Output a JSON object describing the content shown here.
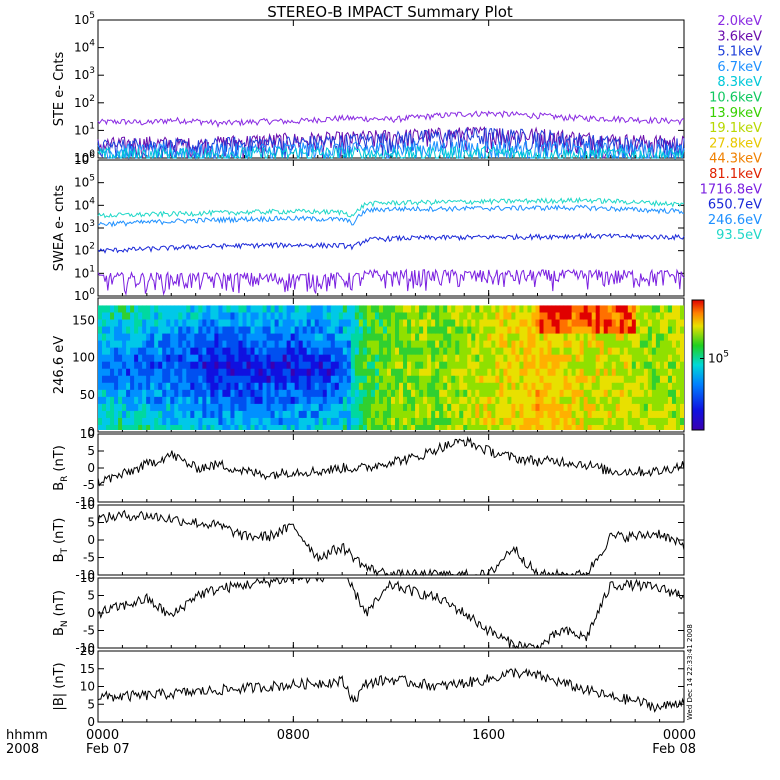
{
  "title": "STEREO-B IMPACT Summary Plot",
  "stamp": "Wed Dec 14 22:33:41 2008",
  "xaxis": {
    "corner_labels": [
      "hhmm",
      "2008"
    ],
    "ticks": [
      {
        "hour": 0,
        "label": "0000",
        "date": "Feb 07"
      },
      {
        "hour": 8,
        "label": "0800",
        "date": ""
      },
      {
        "hour": 16,
        "label": "1600",
        "date": ""
      },
      {
        "hour": 24,
        "label": "0000",
        "date": "Feb 08"
      }
    ],
    "range_hours": [
      0,
      24
    ]
  },
  "colors": {
    "2.0keV": "#8a2be2",
    "3.6keV": "#6a0dad",
    "5.1keV": "#1f3fd9",
    "6.7keV": "#1e90ff",
    "8.3keV": "#00c8d8",
    "10.6keV": "#10c860",
    "13.9keV": "#38d000",
    "19.1keV": "#b8d800",
    "27.8keV": "#e8c800",
    "44.3keV": "#f08000",
    "81.1keV": "#e02000",
    "1716.8eV": "#7a1fe0",
    "650.7eV": "#1a28d8",
    "246.6eV": "#1e90ff",
    "93.5eV": "#20d8c8"
  },
  "chart_data": [
    {
      "type": "line",
      "panel": "ste",
      "ylabel": "STE e- Cnts",
      "yscale": "log",
      "ylim": [
        1,
        100000
      ],
      "yticks": [
        {
          "v": 1,
          "m": "10",
          "e": "0"
        },
        {
          "v": 10,
          "m": "10",
          "e": "1"
        },
        {
          "v": 100,
          "m": "10",
          "e": "2"
        },
        {
          "v": 1000,
          "m": "10",
          "e": "3"
        },
        {
          "v": 10000,
          "m": "10",
          "e": "4"
        },
        {
          "v": 100000,
          "m": "10",
          "e": "5"
        }
      ],
      "series": [
        {
          "name": "2.0keV",
          "color": "#8a2be2",
          "x": [
            0,
            1,
            2,
            3,
            4,
            5,
            6,
            7,
            8,
            9,
            10,
            11,
            12,
            13,
            14,
            15,
            16,
            17,
            18,
            19,
            20,
            21,
            22,
            23,
            24
          ],
          "values": [
            20,
            21,
            19,
            24,
            22,
            18,
            20,
            22,
            21,
            25,
            28,
            27,
            25,
            30,
            35,
            40,
            42,
            38,
            35,
            30,
            28,
            27,
            25,
            23,
            22
          ]
        },
        {
          "name": "3.6keV",
          "color": "#6a0dad",
          "x": [
            0,
            2,
            4,
            6,
            8,
            10,
            12,
            14,
            16,
            18,
            20,
            22,
            24
          ],
          "values": [
            3,
            3.5,
            3,
            4,
            4.5,
            5,
            6,
            7,
            8,
            7,
            5,
            4,
            3.5
          ]
        },
        {
          "name": "5.1keV",
          "color": "#1f3fd9",
          "x": [
            0,
            2,
            4,
            6,
            8,
            10,
            12,
            14,
            16,
            18,
            20,
            22,
            24
          ],
          "values": [
            2.5,
            3,
            2.5,
            3.5,
            3.5,
            4,
            5,
            6,
            7,
            6,
            4,
            3,
            3
          ]
        },
        {
          "name": "6.7keV",
          "color": "#1e90ff",
          "x": [
            0,
            4,
            8,
            12,
            16,
            20,
            24
          ],
          "values": [
            1.8,
            1.8,
            2,
            2.2,
            2.5,
            2,
            1.8
          ]
        },
        {
          "name": "8.3keV",
          "color": "#00c8d8",
          "x": [
            0,
            4,
            8,
            12,
            16,
            20,
            24
          ],
          "values": [
            1.3,
            1.3,
            1.4,
            1.4,
            1.5,
            1.3,
            1.3
          ]
        },
        {
          "name": "10.6keV",
          "values": [],
          "color": "#10c860"
        },
        {
          "name": "13.9keV",
          "values": [],
          "color": "#38d000"
        },
        {
          "name": "19.1keV",
          "values": [],
          "color": "#b8d800"
        },
        {
          "name": "27.8keV",
          "values": [],
          "color": "#e8c800"
        },
        {
          "name": "44.3keV",
          "values": [],
          "color": "#f08000"
        },
        {
          "name": "81.1keV",
          "values": [],
          "color": "#e02000"
        }
      ]
    },
    {
      "type": "line",
      "panel": "swea",
      "ylabel": "SWEA e- cnts",
      "yscale": "log",
      "ylim": [
        1,
        1000000
      ],
      "yticks": [
        {
          "v": 1,
          "m": "10",
          "e": "0"
        },
        {
          "v": 10,
          "m": "10",
          "e": "1"
        },
        {
          "v": 100,
          "m": "10",
          "e": "2"
        },
        {
          "v": 1000,
          "m": "10",
          "e": "3"
        },
        {
          "v": 10000,
          "m": "10",
          "e": "4"
        },
        {
          "v": 100000,
          "m": "10",
          "e": "5"
        },
        {
          "v": 1000000,
          "m": "10",
          "e": "6"
        }
      ],
      "series": [
        {
          "name": "1716.8eV",
          "color": "#7a1fe0",
          "x": [
            0,
            4,
            8,
            10.5,
            11,
            12,
            16,
            20,
            24
          ],
          "values": [
            6,
            6,
            6,
            6,
            8,
            8,
            8,
            8,
            8
          ]
        },
        {
          "name": "650.7eV",
          "color": "#1a28d8",
          "x": [
            0,
            2,
            4,
            6,
            8,
            10,
            10.5,
            11,
            12,
            14,
            16,
            18,
            20,
            22,
            24
          ],
          "values": [
            100,
            120,
            150,
            170,
            180,
            170,
            150,
            300,
            350,
            380,
            400,
            420,
            450,
            420,
            400
          ]
        },
        {
          "name": "246.6eV",
          "color": "#1e90ff",
          "x": [
            0,
            2,
            4,
            6,
            8,
            10,
            10.5,
            11,
            12,
            14,
            16,
            18,
            20,
            22,
            24
          ],
          "values": [
            1500,
            1800,
            2200,
            2500,
            2700,
            2400,
            1600,
            6000,
            7000,
            7200,
            7500,
            7800,
            8000,
            6500,
            5500
          ]
        },
        {
          "name": "93.5eV",
          "color": "#20d8c8",
          "x": [
            0,
            2,
            4,
            6,
            8,
            10,
            10.5,
            11,
            12,
            14,
            16,
            18,
            20,
            22,
            24
          ],
          "values": [
            3500,
            4000,
            4500,
            5000,
            5500,
            5000,
            3500,
            12000,
            13000,
            14000,
            15000,
            16000,
            17000,
            14000,
            11000
          ]
        }
      ]
    },
    {
      "type": "heatmap",
      "panel": "pad",
      "ylabel": "246.6 eV",
      "ylim": [
        0,
        180
      ],
      "yticks": [
        0,
        50,
        100,
        150
      ],
      "colorbar_label": "10",
      "colorbar_exp": "5",
      "colorbar_tick": 0.55,
      "x": [
        0,
        1,
        2,
        3,
        4,
        5,
        6,
        7,
        8,
        9,
        10,
        10.5,
        11,
        12,
        13,
        14,
        15,
        16,
        17,
        18,
        19,
        20,
        21,
        22,
        23,
        24
      ],
      "regime_level": [
        0.25,
        0.22,
        0.2,
        0.18,
        0.15,
        0.12,
        0.12,
        0.12,
        0.12,
        0.14,
        0.16,
        0.45,
        0.55,
        0.6,
        0.62,
        0.6,
        0.65,
        0.68,
        0.72,
        0.75,
        0.72,
        0.7,
        0.68,
        0.66,
        0.64,
        0.65
      ]
    },
    {
      "type": "line",
      "panel": "br",
      "ylabel": "B",
      "ylabel_sub": "R",
      "ylabel_unit": "(nT)",
      "ylim": [
        -10,
        10
      ],
      "yticks": [
        -10,
        -5,
        0,
        5,
        10
      ],
      "x": [
        0,
        1,
        2,
        3,
        4,
        5,
        6,
        7,
        8,
        9,
        10,
        11,
        12,
        13,
        14,
        15,
        16,
        17,
        18,
        19,
        20,
        21,
        22,
        23,
        24
      ],
      "values": [
        -4,
        -2,
        1,
        4,
        0,
        1,
        -1,
        -2,
        -1,
        -1,
        0,
        0,
        2,
        3,
        6,
        8,
        5,
        3,
        2,
        2,
        1,
        -1,
        -1,
        -1,
        1
      ]
    },
    {
      "type": "line",
      "panel": "bt",
      "ylabel": "B",
      "ylabel_sub": "T",
      "ylabel_unit": "(nT)",
      "ylim": [
        -10,
        10
      ],
      "yticks": [
        -10,
        -5,
        0,
        5,
        10
      ],
      "x": [
        0,
        1,
        2,
        3,
        4,
        5,
        6,
        7,
        8,
        9,
        10,
        11,
        12,
        13,
        14,
        15,
        16,
        17,
        18,
        19,
        20,
        21,
        22,
        23,
        24
      ],
      "values": [
        6,
        7,
        7,
        6,
        5,
        4,
        1,
        1,
        4,
        -5,
        -2,
        -8,
        -10,
        -10,
        -10,
        -10,
        -10,
        -2,
        -10,
        -10,
        -10,
        1,
        1,
        2,
        -2
      ]
    },
    {
      "type": "line",
      "panel": "bn",
      "ylabel": "B",
      "ylabel_sub": "N",
      "ylabel_unit": "(nT)",
      "ylim": [
        -10,
        10
      ],
      "yticks": [
        -10,
        -5,
        0,
        5,
        10
      ],
      "x": [
        0,
        1,
        2,
        3,
        4,
        5,
        6,
        7,
        8,
        9,
        10,
        11,
        12,
        13,
        14,
        15,
        16,
        17,
        18,
        19,
        20,
        21,
        22,
        23,
        24
      ],
      "values": [
        0,
        2,
        4,
        -1,
        5,
        7,
        8,
        9,
        10,
        10,
        12,
        0,
        8,
        6,
        4,
        0,
        -5,
        -9,
        -10,
        -5,
        -7,
        8,
        8,
        7,
        5
      ]
    },
    {
      "type": "line",
      "panel": "bmag",
      "ylabel": "|B| (nT)",
      "ylim": [
        0,
        20
      ],
      "yticks": [
        0,
        5,
        10,
        15,
        20
      ],
      "x": [
        0,
        1,
        2,
        3,
        4,
        5,
        6,
        7,
        8,
        9,
        10,
        10.5,
        11,
        12,
        13,
        14,
        15,
        16,
        17,
        18,
        19,
        20,
        21,
        22,
        23,
        24
      ],
      "values": [
        7,
        7.2,
        7.5,
        8,
        8.5,
        9,
        9.5,
        10,
        10.5,
        11,
        11.5,
        6,
        11,
        12,
        11,
        10,
        11,
        12,
        14,
        13,
        11,
        9,
        7,
        6,
        4,
        6
      ]
    }
  ]
}
